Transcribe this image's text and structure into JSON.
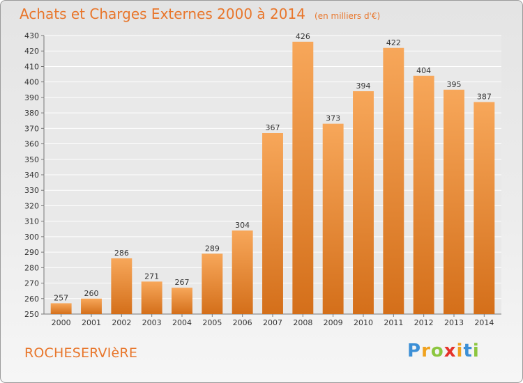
{
  "header": {
    "title": "Achats et Charges Externes 2000 à 2014",
    "subtitle": "(en milliers d'€)"
  },
  "footer": {
    "commune": "ROCHESERVIèRE",
    "logo": [
      "P",
      "r",
      "o",
      "x",
      "i",
      "t",
      "i"
    ]
  },
  "colors": {
    "accent": "#e8762b",
    "bar_light": "#f7a75a",
    "bar_dark": "#d46f1a"
  },
  "chart_data": {
    "type": "bar",
    "title": "Achats et Charges Externes 2000 à 2014",
    "subtitle": "(en milliers d'€)",
    "xlabel": "",
    "ylabel": "",
    "categories": [
      "2000",
      "2001",
      "2002",
      "2003",
      "2004",
      "2005",
      "2006",
      "2007",
      "2008",
      "2009",
      "2010",
      "2011",
      "2012",
      "2013",
      "2014"
    ],
    "values": [
      257,
      260,
      286,
      271,
      267,
      289,
      304,
      367,
      426,
      373,
      394,
      422,
      404,
      395,
      387
    ],
    "ylim": [
      250,
      430
    ],
    "yticks": [
      250,
      260,
      270,
      280,
      290,
      300,
      310,
      320,
      330,
      340,
      350,
      360,
      370,
      380,
      390,
      400,
      410,
      420,
      430
    ],
    "grid": "horizontal",
    "data_labels": true
  }
}
